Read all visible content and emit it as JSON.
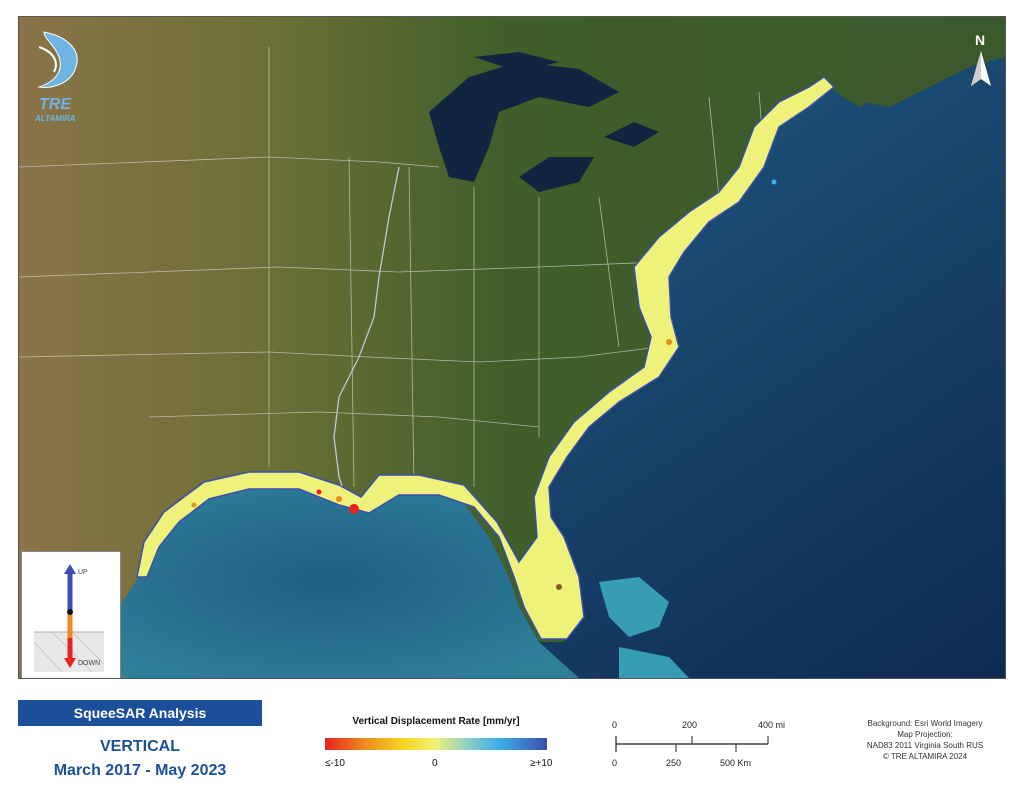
{
  "map": {
    "logo": {
      "name": "TRE",
      "sub": "ALTAMIRA"
    },
    "north_arrow": {
      "label": "N"
    },
    "inset": {
      "up_label": "UP",
      "down_label": "DOWN"
    }
  },
  "panel": {
    "title": "SqueeSAR Analysis",
    "mode": "VERTICAL",
    "period": "March 2017 - May 2023"
  },
  "legend": {
    "title": "Vertical Displacement Rate [mm/yr]",
    "min_label": "≤-10",
    "mid_label": "0",
    "max_label": "≥+10",
    "colors": {
      "low": "#e8221f",
      "mid": "#eef17a",
      "high": "#3a4fb0"
    }
  },
  "scale_bar": {
    "miles": [
      "0",
      "200",
      "400 mi"
    ],
    "km": [
      "0",
      "250",
      "500 Km"
    ]
  },
  "credits": [
    "Background: Esri World Imagery",
    "Map Projection:",
    "NAD83 2011 Virginia South RUS",
    "© TRE ALTAMIRA 2024"
  ]
}
